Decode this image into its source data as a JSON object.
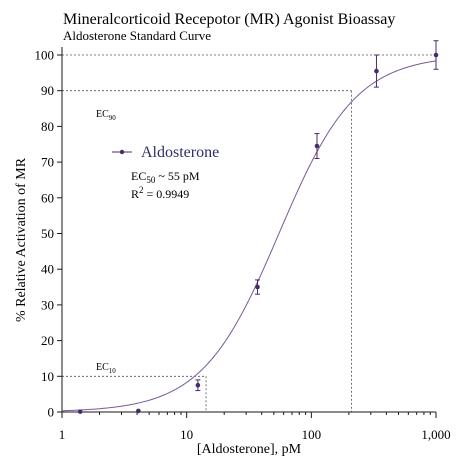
{
  "colors": {
    "series": "#4b2a6b",
    "curve": "#7a5a96",
    "axis": "#1a1a1a",
    "guide": "#555555",
    "legend_text": "#2e2e6a"
  },
  "chart_data": {
    "type": "scatter",
    "title": "Mineralcorticoid Recepotor (MR) Agonist Bioassay",
    "subtitle": "Aldosterone Standard Curve",
    "xlabel": "[Aldosterone], pM",
    "ylabel": "% Relative Activation of MR",
    "x_scale": "log",
    "xlim": [
      1,
      1000
    ],
    "ylim": [
      0,
      100
    ],
    "x_ticks": [
      1,
      10,
      100,
      1000
    ],
    "x_tick_labels": [
      "1",
      "10",
      "100",
      "1,000"
    ],
    "y_ticks": [
      0,
      10,
      20,
      30,
      40,
      50,
      60,
      70,
      80,
      90,
      100
    ],
    "y_tick_labels": [
      "0",
      "10",
      "20",
      "30",
      "40",
      "50",
      "60",
      "70",
      "80",
      "90",
      "100"
    ],
    "legend_position": "upper-left",
    "series": [
      {
        "name": "Aldosterone",
        "x": [
          1.4,
          4.1,
          12.3,
          37,
          111,
          333,
          1000
        ],
        "y": [
          0.1,
          0.3,
          7.5,
          35,
          74.5,
          95.5,
          100
        ],
        "error": [
          0,
          0,
          1.5,
          2,
          3.5,
          4.5,
          4
        ],
        "fit": {
          "model": "4PL",
          "bottom": 0,
          "top": 100,
          "ec50": 55,
          "hill": 1.41
        }
      }
    ],
    "annotations": {
      "ec50_text": "EC",
      "ec50_sub": "50",
      "ec50_value": " ~ 55 pM",
      "r2_text": "R",
      "r2_sup": "2",
      "r2_value": " = 0.9949",
      "ec90_label": "EC",
      "ec90_sub": "90",
      "ec10_label": "EC",
      "ec10_sub": "10"
    },
    "reference_lines": {
      "ec90": {
        "x": 210,
        "y": 90
      },
      "ec10": {
        "x": 14.3,
        "y": 10
      },
      "top": {
        "y": 100
      }
    }
  }
}
